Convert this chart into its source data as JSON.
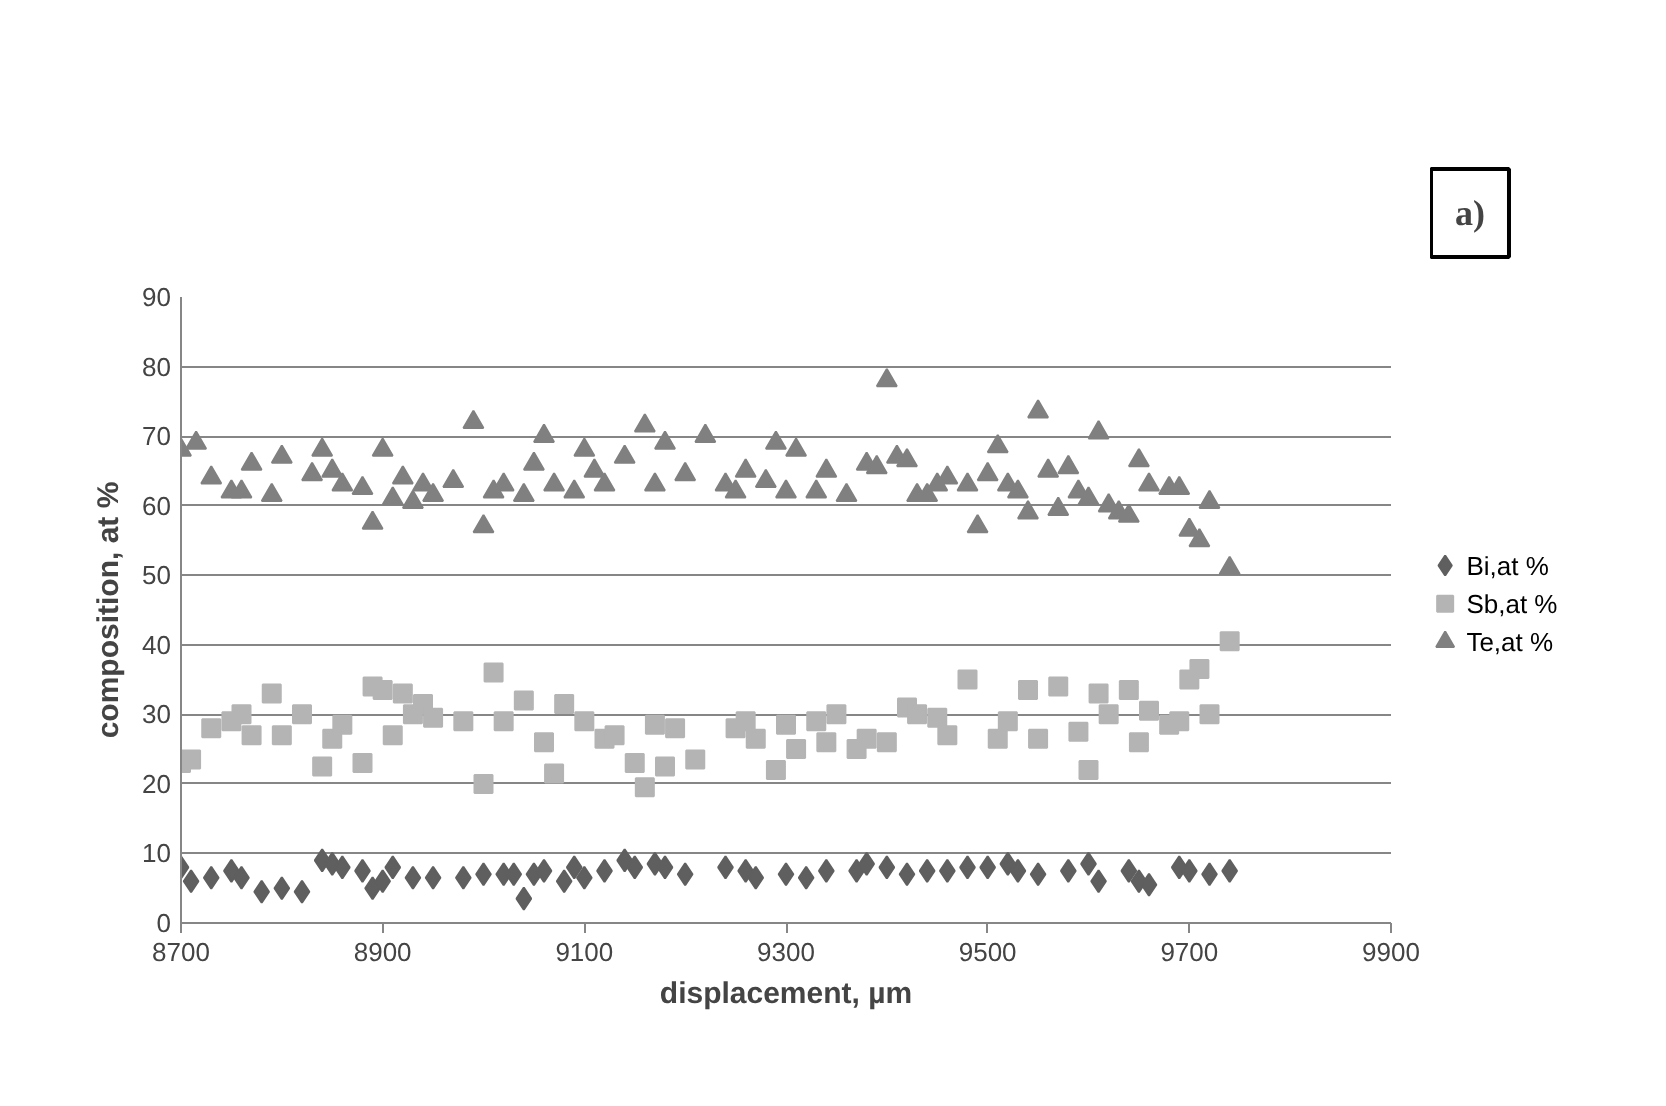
{
  "chart_data": {
    "type": "scatter",
    "xlabel": "displacement, µm",
    "ylabel": "composition, at %",
    "xlim": [
      8700,
      9900
    ],
    "xticks": [
      8700,
      8900,
      9100,
      9300,
      9500,
      9700,
      9900
    ],
    "ylim": [
      0,
      90
    ],
    "yticks": [
      0,
      10,
      20,
      30,
      40,
      50,
      60,
      70,
      80,
      90
    ],
    "grid": "y",
    "legend": "right",
    "annotations": [
      "a)"
    ],
    "series": [
      {
        "name": "Bi,at %",
        "color": "#5f5f5f",
        "marker": "diamond",
        "x": [
          8700,
          8710,
          8730,
          8750,
          8760,
          8780,
          8800,
          8820,
          8840,
          8850,
          8860,
          8880,
          8890,
          8900,
          8910,
          8930,
          8950,
          8980,
          9000,
          9020,
          9030,
          9040,
          9050,
          9060,
          9080,
          9090,
          9100,
          9120,
          9140,
          9150,
          9170,
          9180,
          9200,
          9240,
          9260,
          9270,
          9300,
          9320,
          9340,
          9370,
          9380,
          9400,
          9420,
          9440,
          9460,
          9480,
          9500,
          9520,
          9530,
          9550,
          9580,
          9600,
          9610,
          9640,
          9650,
          9660,
          9690,
          9700,
          9720,
          9740
        ],
        "values": [
          8,
          6,
          6.5,
          7.5,
          6.5,
          4.5,
          5,
          4.5,
          9,
          8.5,
          8,
          7.5,
          5,
          6,
          8,
          6.5,
          6.5,
          6.5,
          7,
          7,
          7,
          3.5,
          7,
          7.5,
          6,
          8,
          6.5,
          7.5,
          9,
          8,
          8.5,
          8,
          7,
          8,
          7.5,
          6.5,
          7,
          6.5,
          7.5,
          7.5,
          8.5,
          8,
          7,
          7.5,
          7.5,
          8,
          8,
          8.5,
          7.5,
          7,
          7.5,
          8.5,
          6,
          7.5,
          6,
          5.5,
          8,
          7.5,
          7,
          7.5
        ]
      },
      {
        "name": "Sb,at %",
        "color": "#b4b4b4",
        "marker": "square",
        "x": [
          8700,
          8710,
          8730,
          8750,
          8760,
          8770,
          8790,
          8800,
          8820,
          8840,
          8850,
          8860,
          8880,
          8890,
          8900,
          8910,
          8920,
          8930,
          8940,
          8950,
          8980,
          9000,
          9010,
          9020,
          9040,
          9060,
          9070,
          9080,
          9100,
          9120,
          9130,
          9150,
          9160,
          9170,
          9180,
          9190,
          9210,
          9250,
          9260,
          9270,
          9290,
          9300,
          9310,
          9330,
          9340,
          9350,
          9370,
          9380,
          9400,
          9420,
          9430,
          9450,
          9460,
          9480,
          9510,
          9520,
          9540,
          9550,
          9570,
          9590,
          9600,
          9610,
          9620,
          9640,
          9650,
          9660,
          9680,
          9690,
          9700,
          9710,
          9720,
          9740
        ],
        "values": [
          23,
          23.5,
          28,
          29,
          30,
          27,
          33,
          27,
          30,
          22.5,
          26.5,
          28.5,
          23,
          34,
          33.5,
          27,
          33,
          30,
          31.5,
          29.5,
          29,
          20,
          36,
          29,
          32,
          26,
          21.5,
          31.5,
          29,
          26.5,
          27,
          23,
          19.5,
          28.5,
          22.5,
          28,
          23.5,
          28,
          29,
          26.5,
          22,
          28.5,
          25,
          29,
          26,
          30,
          25,
          26.5,
          26,
          31,
          30,
          29.5,
          27,
          35,
          26.5,
          29,
          33.5,
          26.5,
          34,
          27.5,
          22,
          33,
          30,
          33.5,
          26,
          30.5,
          28.5,
          29,
          35,
          36.5,
          30,
          40.5
        ]
      },
      {
        "name": "Te,at %",
        "color": "#808080",
        "marker": "triangle",
        "x": [
          8700,
          8715,
          8730,
          8750,
          8760,
          8770,
          8790,
          8800,
          8830,
          8840,
          8850,
          8860,
          8880,
          8890,
          8900,
          8910,
          8920,
          8930,
          8940,
          8950,
          8970,
          8990,
          9000,
          9010,
          9020,
          9040,
          9050,
          9060,
          9070,
          9090,
          9100,
          9110,
          9120,
          9140,
          9160,
          9170,
          9180,
          9200,
          9220,
          9240,
          9250,
          9260,
          9280,
          9290,
          9300,
          9310,
          9330,
          9340,
          9360,
          9380,
          9390,
          9400,
          9410,
          9420,
          9430,
          9440,
          9450,
          9460,
          9480,
          9490,
          9500,
          9510,
          9520,
          9530,
          9540,
          9550,
          9560,
          9570,
          9580,
          9590,
          9600,
          9610,
          9620,
          9630,
          9640,
          9650,
          9660,
          9680,
          9690,
          9700,
          9710,
          9720,
          9740
        ],
        "values": [
          68,
          69,
          64,
          62,
          62,
          66,
          61.5,
          67,
          64.5,
          68,
          65,
          63,
          62.5,
          57.5,
          68,
          61,
          64,
          60.5,
          63,
          61.5,
          63.5,
          72,
          57,
          62,
          63,
          61.5,
          66,
          70,
          63,
          62,
          68,
          65,
          63,
          67,
          71.5,
          63,
          69,
          64.5,
          70,
          63,
          62,
          65,
          63.5,
          69,
          62,
          68,
          62,
          65,
          61.5,
          66,
          65.5,
          78,
          67,
          66.5,
          61.5,
          61.5,
          63,
          64,
          63,
          57,
          64.5,
          68.5,
          63,
          62,
          59,
          73.5,
          65,
          59.5,
          65.5,
          62,
          61,
          70.5,
          60,
          59,
          58.5,
          66.5,
          63,
          62.5,
          62.5,
          56.5,
          55,
          60.5,
          51
        ]
      }
    ]
  }
}
